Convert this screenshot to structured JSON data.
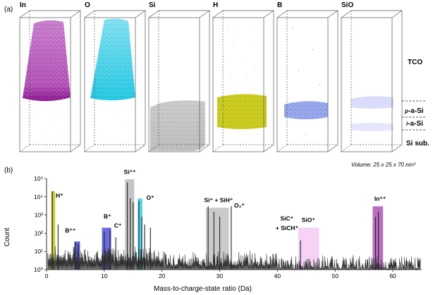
{
  "panel_a": {
    "label": "(a)",
    "volume_note": "Volume: 25 x 25 x 70 nm³",
    "elements": [
      {
        "name": "In",
        "color": "#9b1fa0"
      },
      {
        "name": "O",
        "color": "#1cc4e0"
      },
      {
        "name": "Si",
        "color": "#b3b3b3"
      },
      {
        "name": "H",
        "color": "#b5b800"
      },
      {
        "name": "B",
        "color": "#2546d0"
      },
      {
        "name": "SiO",
        "color": "#8f8ff2"
      }
    ],
    "regions": {
      "tco": "TCO",
      "p_prefix": "p",
      "p_rest": "-a-Si",
      "i_prefix": "i",
      "i_rest": "-a-Si",
      "sub": "Si sub."
    }
  },
  "chart_data": {
    "type": "line",
    "panel_label": "(b)",
    "xlabel": "Mass-to-charge-state ratio (Da)",
    "ylabel": "Count",
    "xlim": [
      0,
      65
    ],
    "ylim": [
      1,
      100000
    ],
    "yscale": "log",
    "xticks": [
      0,
      10,
      20,
      30,
      40,
      50,
      60
    ],
    "yticks": [
      {
        "value": 1,
        "label": "10⁰"
      },
      {
        "value": 10,
        "label": "10¹"
      },
      {
        "value": 100,
        "label": "10²"
      },
      {
        "value": 1000,
        "label": "10³"
      },
      {
        "value": 10000,
        "label": "10⁴"
      },
      {
        "value": 100000,
        "label": "10⁵"
      }
    ],
    "peaks": [
      {
        "x": 1,
        "count": 20000
      },
      {
        "x": 2,
        "count": 300
      },
      {
        "x": 5,
        "count": 30
      },
      {
        "x": 5.5,
        "count": 25
      },
      {
        "x": 10,
        "count": 120
      },
      {
        "x": 11,
        "count": 150
      },
      {
        "x": 12,
        "count": 60
      },
      {
        "x": 14,
        "count": 60000
      },
      {
        "x": 14.5,
        "count": 8000
      },
      {
        "x": 15,
        "count": 5000
      },
      {
        "x": 16,
        "count": 6000
      },
      {
        "x": 16.5,
        "count": 800
      },
      {
        "x": 17,
        "count": 300
      },
      {
        "x": 18,
        "count": 200
      },
      {
        "x": 28,
        "count": 3000
      },
      {
        "x": 29,
        "count": 1500
      },
      {
        "x": 30,
        "count": 800
      },
      {
        "x": 32,
        "count": 3000
      },
      {
        "x": 44,
        "count": 40
      },
      {
        "x": 57,
        "count": 800
      },
      {
        "x": 57.5,
        "count": 1500
      }
    ],
    "bands": [
      {
        "name": "H⁺",
        "x0": 0.8,
        "x1": 1.5,
        "top": 20000,
        "color": "#b5b800"
      },
      {
        "name": "B⁺⁺",
        "x0": 4.8,
        "x1": 5.8,
        "top": 35,
        "color": "#3030c0"
      },
      {
        "name": "B⁺",
        "x0": 9.6,
        "x1": 11.2,
        "top": 200,
        "color": "#3a3ad0"
      },
      {
        "name": "Si⁺⁺",
        "x0": 13.6,
        "x1": 15.2,
        "top": 90000,
        "color": "#b0b0b0"
      },
      {
        "name": "O⁺",
        "x0": 15.8,
        "x1": 16.6,
        "top": 8000,
        "color": "#1cc4e0"
      },
      {
        "name": "Si⁺ + SiH⁺",
        "x0": 27.6,
        "x1": 31.6,
        "top": 2500,
        "color": "#b8b8b8"
      },
      {
        "name": "SiO⁺",
        "x0": 43.6,
        "x1": 47.2,
        "top": 200,
        "color": "#f3c3f3"
      },
      {
        "name": "In⁺⁺",
        "x0": 56.5,
        "x1": 58.3,
        "top": 3000,
        "color": "#a040a8"
      }
    ],
    "annotations": [
      {
        "text": "H⁺",
        "x": 1.6,
        "y": 9000
      },
      {
        "text": "B⁺⁺",
        "x": 3.2,
        "y": 110
      },
      {
        "text": "B⁺",
        "x": 9.9,
        "y": 650
      },
      {
        "text": "C⁺",
        "x": 11.7,
        "y": 200
      },
      {
        "text": "Si⁺⁺",
        "x": 13.4,
        "y": 180000
      },
      {
        "text": "O⁺",
        "x": 17.3,
        "y": 7000
      },
      {
        "text": "Si⁺ + SiH⁺",
        "x": 27.3,
        "y": 5000
      },
      {
        "text": "O₂⁺",
        "x": 32.5,
        "y": 2600
      },
      {
        "text": "SiC⁺",
        "x": 40.5,
        "y": 500
      },
      {
        "text": "+ SiCH⁺",
        "x": 39.7,
        "y": 150
      },
      {
        "text": "SiO⁺",
        "x": 44.2,
        "y": 420
      },
      {
        "text": "In⁺⁺",
        "x": 56.8,
        "y": 6000
      }
    ]
  }
}
